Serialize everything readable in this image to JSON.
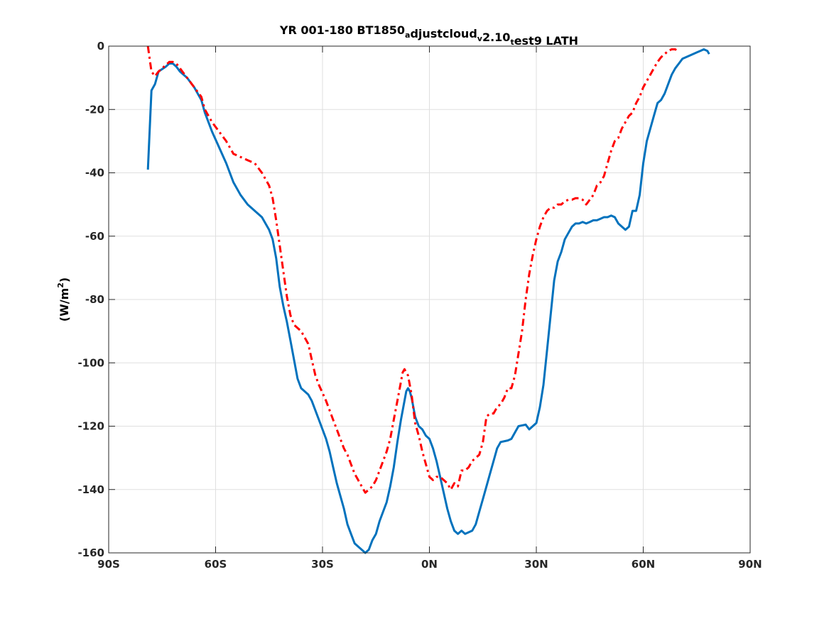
{
  "chart_data": {
    "type": "line",
    "title": {
      "parts": [
        {
          "text": "YR 001-180 BT1850",
          "sub": false
        },
        {
          "text": "a",
          "sub": true
        },
        {
          "text": "djustcloud",
          "sub": false
        },
        {
          "text": "v",
          "sub": true
        },
        {
          "text": "2.10",
          "sub": false
        },
        {
          "text": "t",
          "sub": true
        },
        {
          "text": "est9 LATH",
          "sub": false
        }
      ]
    },
    "xlabel": "",
    "ylabel": {
      "prefix": "(W/m",
      "sup": "2",
      "suffix": ")"
    },
    "xlim": [
      -90,
      90
    ],
    "ylim": [
      -160,
      0
    ],
    "xticks": [
      {
        "value": -90,
        "label": "90S"
      },
      {
        "value": -60,
        "label": "60S"
      },
      {
        "value": -30,
        "label": "30S"
      },
      {
        "value": 0,
        "label": "0N"
      },
      {
        "value": 30,
        "label": "30N"
      },
      {
        "value": 60,
        "label": "60N"
      },
      {
        "value": 90,
        "label": "90N"
      }
    ],
    "yticks": [
      {
        "value": 0,
        "label": "0"
      },
      {
        "value": -20,
        "label": "-20"
      },
      {
        "value": -40,
        "label": "-40"
      },
      {
        "value": -60,
        "label": "-60"
      },
      {
        "value": -80,
        "label": "-80"
      },
      {
        "value": -100,
        "label": "-100"
      },
      {
        "value": -120,
        "label": "-120"
      },
      {
        "value": -140,
        "label": "-140"
      },
      {
        "value": -160,
        "label": "-160"
      }
    ],
    "grid": true,
    "series": [
      {
        "color": "#0072BD",
        "style": "solid",
        "points": [
          [
            -79,
            -39
          ],
          [
            -78,
            -14
          ],
          [
            -77,
            -12
          ],
          [
            -76,
            -8
          ],
          [
            -74,
            -6.5
          ],
          [
            -73,
            -5.5
          ],
          [
            -72,
            -5.5
          ],
          [
            -71,
            -6.5
          ],
          [
            -70,
            -8
          ],
          [
            -68,
            -10
          ],
          [
            -66,
            -13
          ],
          [
            -64,
            -17
          ],
          [
            -63,
            -21
          ],
          [
            -61,
            -27
          ],
          [
            -59,
            -32
          ],
          [
            -57,
            -37
          ],
          [
            -55,
            -43
          ],
          [
            -53,
            -47
          ],
          [
            -51,
            -50
          ],
          [
            -49,
            -52
          ],
          [
            -47,
            -54
          ],
          [
            -45,
            -58
          ],
          [
            -44,
            -61
          ],
          [
            -43,
            -67
          ],
          [
            -42,
            -76
          ],
          [
            -41,
            -82
          ],
          [
            -40,
            -87
          ],
          [
            -39,
            -93
          ],
          [
            -38,
            -99
          ],
          [
            -37,
            -105
          ],
          [
            -36,
            -108
          ],
          [
            -34,
            -110
          ],
          [
            -33,
            -112
          ],
          [
            -31,
            -118
          ],
          [
            -29,
            -124
          ],
          [
            -28,
            -128
          ],
          [
            -27,
            -133
          ],
          [
            -26,
            -138
          ],
          [
            -25,
            -142
          ],
          [
            -24,
            -146
          ],
          [
            -23,
            -151
          ],
          [
            -22,
            -154
          ],
          [
            -21,
            -157
          ],
          [
            -20,
            -158
          ],
          [
            -19,
            -159
          ],
          [
            -18,
            -160
          ],
          [
            -17,
            -159
          ],
          [
            -16,
            -156
          ],
          [
            -15,
            -154
          ],
          [
            -14,
            -150
          ],
          [
            -13,
            -147
          ],
          [
            -12,
            -144
          ],
          [
            -11,
            -139
          ],
          [
            -10,
            -133
          ],
          [
            -9,
            -125
          ],
          [
            -8,
            -118
          ],
          [
            -7,
            -112
          ],
          [
            -6.5,
            -109
          ],
          [
            -6,
            -108
          ],
          [
            -5.5,
            -109
          ],
          [
            -5,
            -111
          ],
          [
            -4,
            -117
          ],
          [
            -3,
            -120
          ],
          [
            -2,
            -121
          ],
          [
            -1,
            -123
          ],
          [
            0,
            -124
          ],
          [
            1,
            -127
          ],
          [
            2,
            -131
          ],
          [
            3,
            -136
          ],
          [
            4,
            -141
          ],
          [
            5,
            -146
          ],
          [
            6,
            -150
          ],
          [
            7,
            -153
          ],
          [
            8,
            -154
          ],
          [
            9,
            -153
          ],
          [
            10,
            -154
          ],
          [
            11,
            -153.5
          ],
          [
            12,
            -153
          ],
          [
            13,
            -151
          ],
          [
            14,
            -147
          ],
          [
            15,
            -143
          ],
          [
            16,
            -139
          ],
          [
            17,
            -135
          ],
          [
            18,
            -131
          ],
          [
            19,
            -127
          ],
          [
            20,
            -125
          ],
          [
            22,
            -124.5
          ],
          [
            23,
            -124
          ],
          [
            24,
            -122
          ],
          [
            25,
            -120
          ],
          [
            27,
            -119.5
          ],
          [
            28,
            -121
          ],
          [
            29,
            -120
          ],
          [
            30,
            -119
          ],
          [
            31,
            -114
          ],
          [
            32,
            -107
          ],
          [
            33,
            -96
          ],
          [
            34,
            -85
          ],
          [
            35,
            -74
          ],
          [
            36,
            -68
          ],
          [
            37,
            -65
          ],
          [
            38,
            -61
          ],
          [
            39,
            -59
          ],
          [
            40,
            -57
          ],
          [
            41,
            -56
          ],
          [
            42,
            -56
          ],
          [
            43,
            -55.5
          ],
          [
            44,
            -56
          ],
          [
            45,
            -55.5
          ],
          [
            46,
            -55
          ],
          [
            47,
            -55
          ],
          [
            48,
            -54.5
          ],
          [
            49,
            -54
          ],
          [
            50,
            -54
          ],
          [
            51,
            -53.5
          ],
          [
            52,
            -54
          ],
          [
            53,
            -56
          ],
          [
            54,
            -57
          ],
          [
            55,
            -58
          ],
          [
            56,
            -57
          ],
          [
            57,
            -52
          ],
          [
            58,
            -52
          ],
          [
            59,
            -47
          ],
          [
            60,
            -37
          ],
          [
            61,
            -30
          ],
          [
            62,
            -26
          ],
          [
            63,
            -22
          ],
          [
            64,
            -18
          ],
          [
            65,
            -17
          ],
          [
            66,
            -15
          ],
          [
            67,
            -12
          ],
          [
            68,
            -9
          ],
          [
            69,
            -7
          ],
          [
            70,
            -5.5
          ],
          [
            71,
            -4
          ],
          [
            73,
            -3
          ],
          [
            75,
            -2
          ],
          [
            76,
            -1.5
          ],
          [
            77,
            -1
          ],
          [
            78,
            -1.5
          ],
          [
            78.5,
            -2.5
          ]
        ]
      },
      {
        "color": "#FF0000",
        "style": "dashdot",
        "points": [
          [
            -79,
            0
          ],
          [
            -78,
            -8
          ],
          [
            -77,
            -9.5
          ],
          [
            -76,
            -8
          ],
          [
            -74,
            -6
          ],
          [
            -73,
            -5
          ],
          [
            -72,
            -5
          ],
          [
            -71,
            -5.5
          ],
          [
            -70,
            -7
          ],
          [
            -68,
            -10
          ],
          [
            -66,
            -13
          ],
          [
            -64,
            -16
          ],
          [
            -63,
            -20
          ],
          [
            -61,
            -24
          ],
          [
            -59,
            -27
          ],
          [
            -57,
            -30
          ],
          [
            -55,
            -34
          ],
          [
            -53,
            -35
          ],
          [
            -51,
            -36
          ],
          [
            -49,
            -37
          ],
          [
            -47,
            -40
          ],
          [
            -45,
            -44
          ],
          [
            -44,
            -48
          ],
          [
            -43,
            -55
          ],
          [
            -42,
            -63
          ],
          [
            -41,
            -71
          ],
          [
            -40,
            -79
          ],
          [
            -39,
            -85
          ],
          [
            -38,
            -88
          ],
          [
            -36,
            -90
          ],
          [
            -35,
            -92
          ],
          [
            -34,
            -94
          ],
          [
            -33,
            -99
          ],
          [
            -32,
            -104
          ],
          [
            -31,
            -107
          ],
          [
            -29,
            -112
          ],
          [
            -28,
            -115
          ],
          [
            -27,
            -118
          ],
          [
            -26,
            -121
          ],
          [
            -25,
            -124
          ],
          [
            -24,
            -127
          ],
          [
            -23,
            -129
          ],
          [
            -22,
            -132
          ],
          [
            -21,
            -135
          ],
          [
            -20,
            -137
          ],
          [
            -19,
            -139
          ],
          [
            -18,
            -141
          ],
          [
            -17,
            -140
          ],
          [
            -16,
            -139
          ],
          [
            -15,
            -137
          ],
          [
            -14,
            -134
          ],
          [
            -13,
            -131
          ],
          [
            -12,
            -128
          ],
          [
            -11,
            -124
          ],
          [
            -10,
            -118
          ],
          [
            -9,
            -112
          ],
          [
            -8,
            -106
          ],
          [
            -7.5,
            -103
          ],
          [
            -7,
            -102
          ],
          [
            -6,
            -104
          ],
          [
            -5,
            -110
          ],
          [
            -4,
            -119
          ],
          [
            -3,
            -123
          ],
          [
            -2,
            -128
          ],
          [
            -1,
            -132
          ],
          [
            0,
            -136
          ],
          [
            1,
            -137
          ],
          [
            2,
            -136
          ],
          [
            3,
            -136
          ],
          [
            4,
            -137
          ],
          [
            5,
            -138
          ],
          [
            6,
            -140
          ],
          [
            7,
            -138
          ],
          [
            8,
            -139
          ],
          [
            9,
            -134
          ],
          [
            10,
            -134
          ],
          [
            11,
            -133
          ],
          [
            12,
            -131
          ],
          [
            13,
            -130
          ],
          [
            14,
            -129
          ],
          [
            15,
            -125
          ],
          [
            16,
            -117
          ],
          [
            17,
            -116
          ],
          [
            18,
            -116
          ],
          [
            19,
            -114
          ],
          [
            20,
            -113
          ],
          [
            21,
            -111
          ],
          [
            22,
            -108
          ],
          [
            23,
            -108
          ],
          [
            24,
            -104
          ],
          [
            25,
            -97
          ],
          [
            26,
            -90
          ],
          [
            27,
            -80
          ],
          [
            28,
            -72
          ],
          [
            29,
            -66
          ],
          [
            30,
            -61
          ],
          [
            31,
            -57
          ],
          [
            32,
            -54
          ],
          [
            33,
            -52
          ],
          [
            34,
            -51
          ],
          [
            35,
            -51
          ],
          [
            36,
            -50
          ],
          [
            37,
            -50
          ],
          [
            38,
            -49
          ],
          [
            39,
            -48.5
          ],
          [
            40,
            -48.5
          ],
          [
            41,
            -48
          ],
          [
            42,
            -48
          ],
          [
            43,
            -48.5
          ],
          [
            44,
            -50
          ],
          [
            45,
            -48.5
          ],
          [
            46,
            -47
          ],
          [
            47,
            -44
          ],
          [
            48,
            -43
          ],
          [
            49,
            -41
          ],
          [
            50,
            -37
          ],
          [
            51,
            -33
          ],
          [
            52,
            -30
          ],
          [
            53,
            -29
          ],
          [
            54,
            -26
          ],
          [
            55,
            -24
          ],
          [
            56,
            -22
          ],
          [
            57,
            -21
          ],
          [
            58,
            -18
          ],
          [
            59,
            -16
          ],
          [
            60,
            -13
          ],
          [
            61,
            -11
          ],
          [
            62,
            -9
          ],
          [
            63,
            -7
          ],
          [
            64,
            -5
          ],
          [
            65,
            -3.5
          ],
          [
            66,
            -2.5
          ],
          [
            67,
            -1.5
          ],
          [
            68,
            -1
          ],
          [
            69,
            -1
          ],
          [
            70,
            -2
          ]
        ]
      }
    ]
  }
}
